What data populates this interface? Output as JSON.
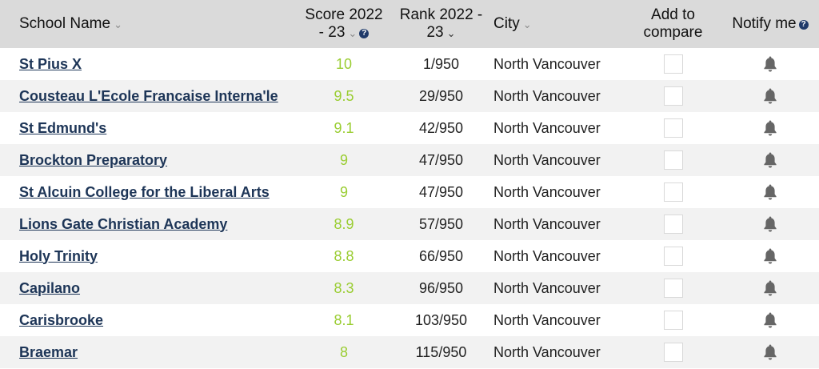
{
  "header": {
    "school_name": "School Name",
    "score_line1": "Score 2022",
    "score_line2": "- 23",
    "rank_line1": "Rank 2022 -",
    "rank_line2": "23",
    "city": "City",
    "compare_line1": "Add to",
    "compare_line2": "compare",
    "notify": "Notify me",
    "chevron_glyph": "⌄",
    "help_glyph": "?"
  },
  "rows": [
    {
      "name": "St Pius X",
      "score": "10",
      "rank": "1/950",
      "city": "North Vancouver"
    },
    {
      "name": "Cousteau L'Ecole Francaise Interna'le",
      "score": "9.5",
      "rank": "29/950",
      "city": "North Vancouver"
    },
    {
      "name": "St Edmund's",
      "score": "9.1",
      "rank": "42/950",
      "city": "North Vancouver"
    },
    {
      "name": "Brockton Preparatory",
      "score": "9",
      "rank": "47/950",
      "city": "North Vancouver"
    },
    {
      "name": "St Alcuin College for the Liberal Arts",
      "score": "9",
      "rank": "47/950",
      "city": "North Vancouver"
    },
    {
      "name": "Lions Gate Christian Academy",
      "score": "8.9",
      "rank": "57/950",
      "city": "North Vancouver"
    },
    {
      "name": "Holy Trinity",
      "score": "8.8",
      "rank": "66/950",
      "city": "North Vancouver"
    },
    {
      "name": "Capilano",
      "score": "8.3",
      "rank": "96/950",
      "city": "North Vancouver"
    },
    {
      "name": "Carisbrooke",
      "score": "8.1",
      "rank": "103/950",
      "city": "North Vancouver"
    },
    {
      "name": "Braemar",
      "score": "8",
      "rank": "115/950",
      "city": "North Vancouver"
    }
  ],
  "colors": {
    "link": "#1d3557",
    "score": "#9acd32",
    "header_bg": "#dadada",
    "row_alt_bg": "#f2f2f2",
    "bell": "#666666",
    "help_icon": "#1f3a6a"
  },
  "icons": {
    "notify": "bell-icon",
    "help": "help-circle-icon",
    "sort": "chevron-down-icon"
  }
}
